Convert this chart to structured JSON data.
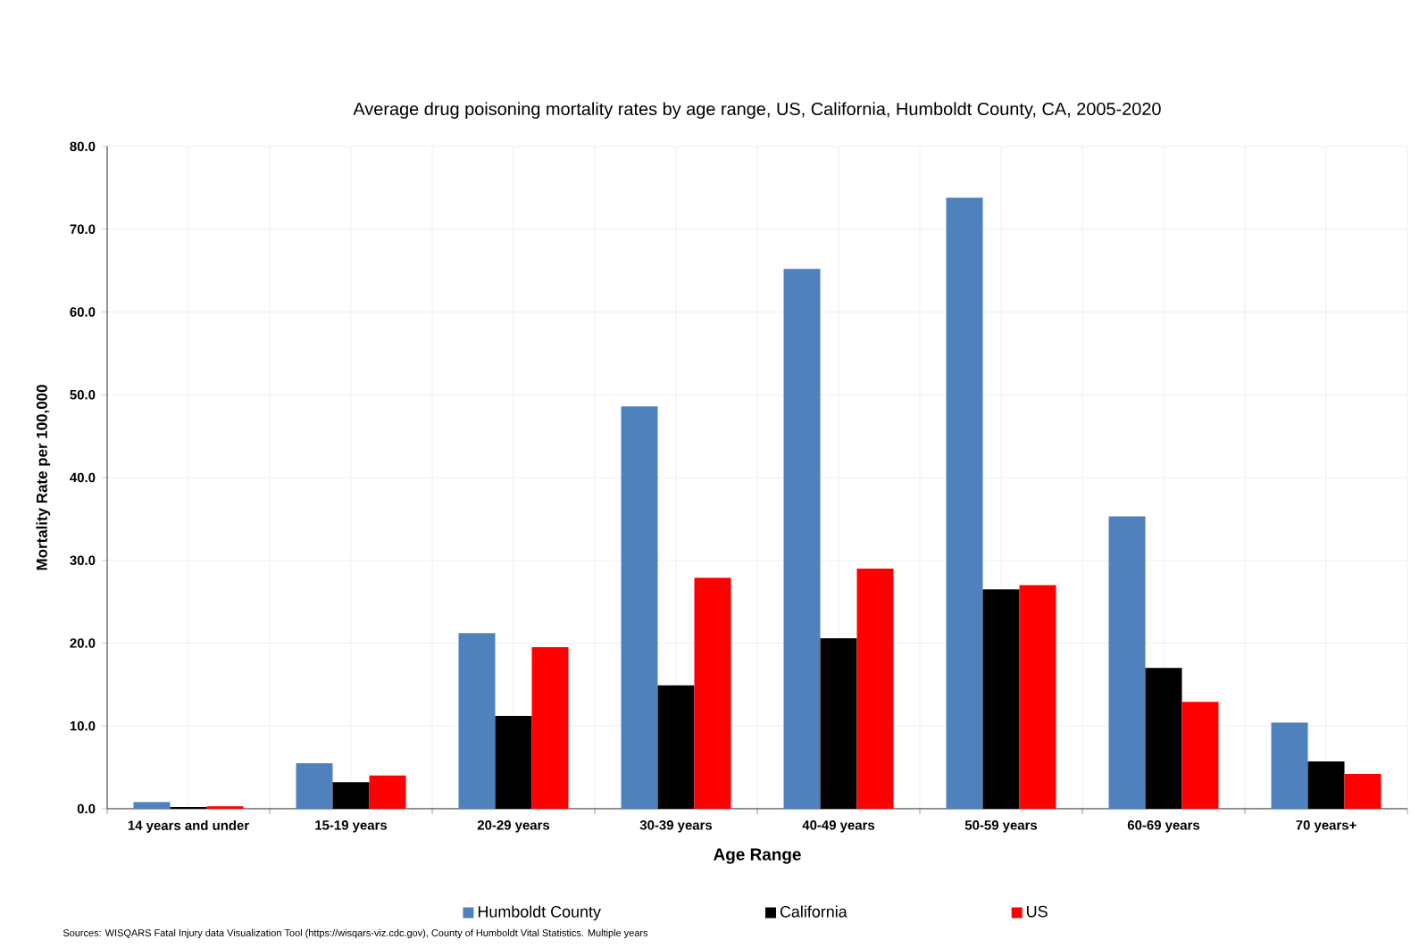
{
  "chart_data": {
    "type": "bar",
    "title": "Average drug poisoning mortality rates by age range, US, California, Humboldt County, CA, 2005-2020",
    "xlabel": "Age Range",
    "ylabel": "Mortality Rate per 100,000",
    "categories": [
      "14 years and under",
      "15-19 years",
      "20-29 years",
      "30-39 years",
      "40-49 years",
      "50-59 years",
      "60-69 years",
      "70 years+"
    ],
    "series": [
      {
        "name": "Humboldt County",
        "color": "#4f81bd",
        "values": [
          0.8,
          5.5,
          21.2,
          48.6,
          65.2,
          73.8,
          35.3,
          10.4
        ]
      },
      {
        "name": "California",
        "color": "#000000",
        "values": [
          0.2,
          3.2,
          11.2,
          14.9,
          20.6,
          26.5,
          17.0,
          5.7
        ]
      },
      {
        "name": "US",
        "color": "#ff0000",
        "values": [
          0.3,
          4.0,
          19.5,
          27.9,
          29.0,
          27.0,
          12.9,
          4.2
        ]
      }
    ],
    "ylim": [
      0,
      80
    ],
    "yticks": [
      {
        "value": 0,
        "label": "0.0"
      },
      {
        "value": 10,
        "label": "10.0"
      },
      {
        "value": 20,
        "label": "20.0"
      },
      {
        "value": 30,
        "label": "30.0"
      },
      {
        "value": 40,
        "label": "40.0"
      },
      {
        "value": 50,
        "label": "50.0"
      },
      {
        "value": 60,
        "label": "60.0"
      },
      {
        "value": 70,
        "label": "70.0"
      },
      {
        "value": 80,
        "label": "80.0"
      }
    ],
    "grid": true,
    "legend": "bottom",
    "annotations": [
      "Sources:  WISQARS Fatal Injury data Visualization Tool (https://wisqars-viz.cdc.gov), County of Humboldt  Vital Statistics. Multiple  years"
    ]
  }
}
